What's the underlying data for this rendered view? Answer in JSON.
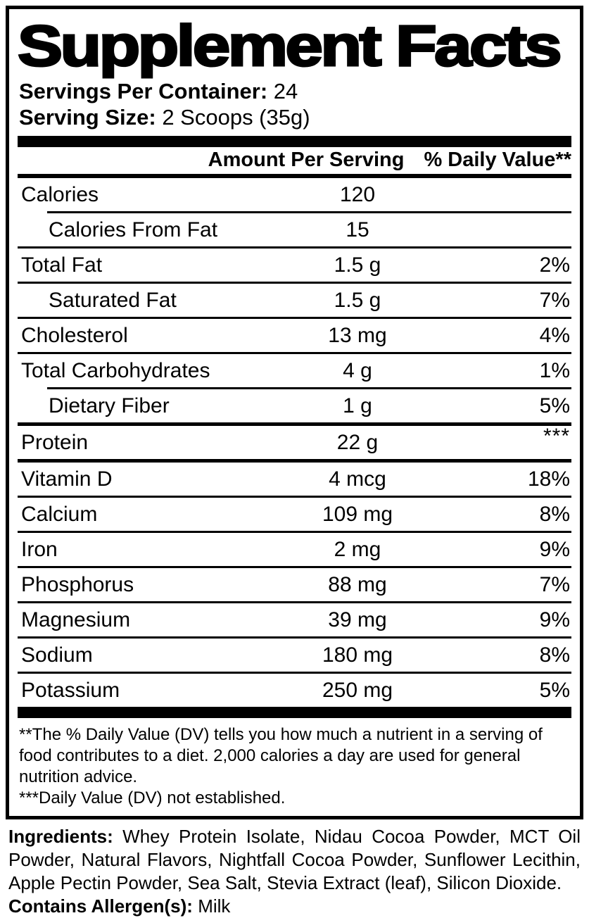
{
  "title": "Supplement Facts",
  "servings": {
    "per_container_label": "Servings Per Container:",
    "per_container_value": "24",
    "size_label": "Serving Size:",
    "size_value": "2 Scoops (35g)"
  },
  "table": {
    "header": {
      "amount": "Amount Per Serving",
      "daily_value": "% Daily Value**"
    },
    "rows": [
      {
        "label": "Calories",
        "amount": "120",
        "dv": "",
        "indent": false,
        "separator": "none",
        "dv_raised": false
      },
      {
        "label": "Calories From Fat",
        "amount": "15",
        "dv": "",
        "indent": true,
        "separator": "indent",
        "dv_raised": false
      },
      {
        "label": "Total Fat",
        "amount": "1.5 g",
        "dv": "2%",
        "indent": false,
        "separator": "full",
        "dv_raised": false
      },
      {
        "label": "Saturated Fat",
        "amount": "1.5 g",
        "dv": "7%",
        "indent": true,
        "separator": "full",
        "dv_raised": false
      },
      {
        "label": "Cholesterol",
        "amount": "13 mg",
        "dv": "4%",
        "indent": false,
        "separator": "full",
        "dv_raised": false
      },
      {
        "label": "Total Carbohydrates",
        "amount": "4 g",
        "dv": "1%",
        "indent": false,
        "separator": "full",
        "dv_raised": false
      },
      {
        "label": "Dietary Fiber",
        "amount": "1 g",
        "dv": "5%",
        "indent": true,
        "separator": "indent",
        "dv_raised": false
      },
      {
        "label": "Protein",
        "amount": "22 g",
        "dv": "***",
        "indent": false,
        "separator": "thick",
        "dv_raised": true
      },
      {
        "label": "Vitamin D",
        "amount": "4 mcg",
        "dv": "18%",
        "indent": false,
        "separator": "thick",
        "dv_raised": false
      },
      {
        "label": "Calcium",
        "amount": "109 mg",
        "dv": "8%",
        "indent": false,
        "separator": "full",
        "dv_raised": false
      },
      {
        "label": "Iron",
        "amount": "2 mg",
        "dv": "9%",
        "indent": false,
        "separator": "full",
        "dv_raised": false
      },
      {
        "label": "Phosphorus",
        "amount": "88 mg",
        "dv": "7%",
        "indent": false,
        "separator": "full",
        "dv_raised": false
      },
      {
        "label": "Magnesium",
        "amount": "39 mg",
        "dv": "9%",
        "indent": false,
        "separator": "full",
        "dv_raised": false
      },
      {
        "label": "Sodium",
        "amount": "180 mg",
        "dv": "8%",
        "indent": false,
        "separator": "full",
        "dv_raised": false
      },
      {
        "label": "Potassium",
        "amount": "250 mg",
        "dv": "5%",
        "indent": false,
        "separator": "full",
        "dv_raised": false
      }
    ]
  },
  "footnotes": {
    "daily_value_note": "**The % Daily Value (DV) tells you how much a nutrient in a serving of food contributes to a diet. 2,000 calories a day are used for general nutrition advice.",
    "not_established_note": "***Daily Value (DV) not established."
  },
  "ingredients": {
    "label": "Ingredients:",
    "text": "Whey Protein Isolate, Nidau Cocoa Powder, MCT Oil Powder, Natural Flavors, Nightfall Cocoa Powder, Sunflower Lecithin, Apple Pectin Powder, Sea Salt, Stevia Extract (leaf), Silicon Dioxide.",
    "allergen_label": "Contains Allergen(s):",
    "allergen_value": "Milk"
  },
  "colors": {
    "text": "#000000",
    "background": "#ffffff"
  }
}
